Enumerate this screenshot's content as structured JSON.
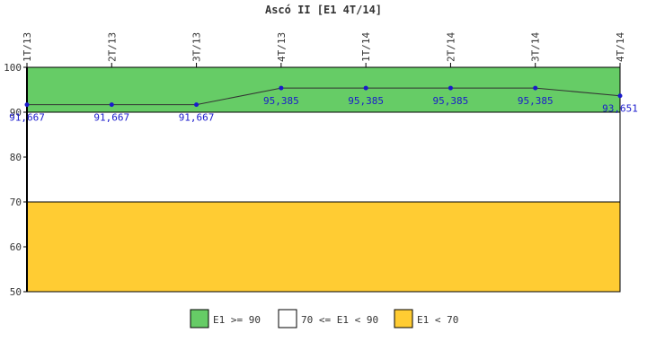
{
  "chart_data": {
    "type": "line",
    "title": "Ascó II [E1 4T/14]",
    "categories": [
      "1T/13",
      "2T/13",
      "3T/13",
      "4T/13",
      "1T/14",
      "2T/14",
      "3T/14",
      "4T/14"
    ],
    "series": [
      {
        "values": [
          91.667,
          91.667,
          91.667,
          95.385,
          95.385,
          95.385,
          95.385,
          93.651
        ],
        "labels": [
          "91,667",
          "91,667",
          "91,667",
          "95,385",
          "95,385",
          "95,385",
          "95,385",
          "93,651"
        ],
        "color": "#1a1acc"
      }
    ],
    "ylim": [
      50,
      100
    ],
    "yticks": [
      50,
      60,
      70,
      80,
      90,
      100
    ],
    "bands": [
      {
        "from": 90,
        "to": 100,
        "color": "#66cc66",
        "label": "E1 >= 90"
      },
      {
        "from": 70,
        "to": 90,
        "color": "#ffffff",
        "label": "70 <= E1 < 90"
      },
      {
        "from": 50,
        "to": 70,
        "color": "#ffcc33",
        "label": "E1 < 70"
      }
    ],
    "legend_position": "bottom",
    "grid": false
  }
}
